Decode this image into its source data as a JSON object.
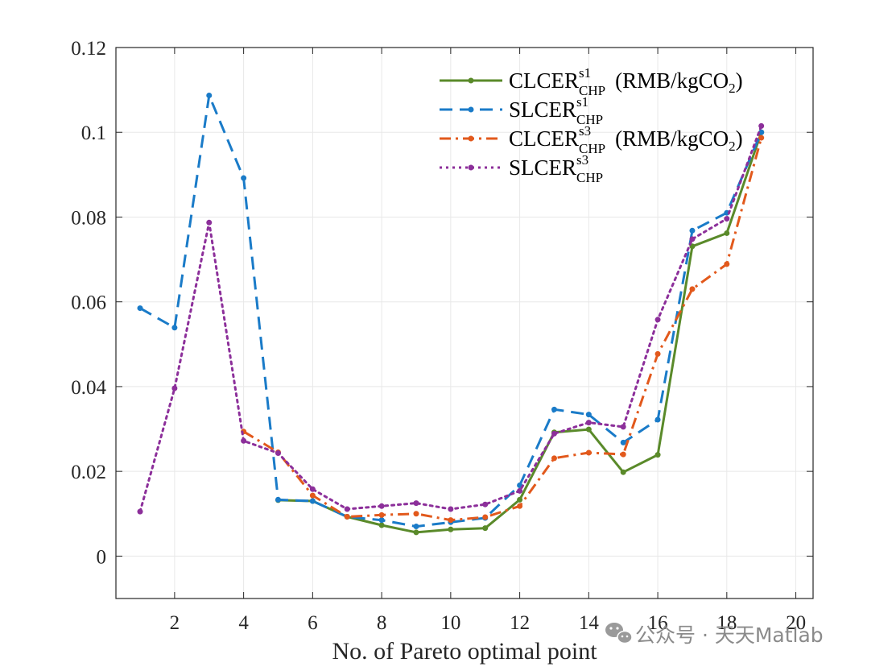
{
  "chart_data": {
    "type": "line",
    "title": "",
    "xlabel": "No. of Pareto optimal point",
    "ylabel": "",
    "xlim": [
      0.3,
      20.5
    ],
    "ylim": [
      -0.01,
      0.12
    ],
    "xticks": [
      2,
      4,
      6,
      8,
      10,
      12,
      14,
      16,
      18,
      20
    ],
    "xtick_labels": [
      "2",
      "4",
      "6",
      "8",
      "10",
      "12",
      "14",
      "16",
      "18",
      "20"
    ],
    "yticks": [
      0,
      0.02,
      0.04,
      0.06,
      0.08,
      0.1,
      0.12
    ],
    "ytick_labels": [
      "0",
      "0.02",
      "0.04",
      "0.06",
      "0.08",
      "0.1",
      "0.12"
    ],
    "grid": true,
    "legend_position": "top-right",
    "series": [
      {
        "name": "CLCER s1 CHP (RMB/kgCO2)",
        "label_main": "CLCER",
        "label_sup": "s1",
        "label_sub": "CHP",
        "label_unit": "(RMB/kgCO",
        "label_unit_sub": "2",
        "label_unit_end": ")",
        "color": "#5a8a2a",
        "dash": "solid",
        "x": [
          5,
          6,
          7,
          8,
          9,
          10,
          11,
          12,
          13,
          14,
          15,
          16,
          17,
          18,
          19
        ],
        "values": [
          0.0132,
          0.013,
          0.0093,
          0.0073,
          0.0056,
          0.0063,
          0.0066,
          0.0133,
          0.0292,
          0.0299,
          0.0198,
          0.0239,
          0.0731,
          0.0762,
          0.1
        ]
      },
      {
        "name": "SLCER s1 CHP",
        "label_main": "SLCER",
        "label_sup": "s1",
        "label_sub": "CHP",
        "label_unit": "",
        "label_unit_sub": "",
        "label_unit_end": "",
        "color": "#1a7bc8",
        "dash": "dashed",
        "x": [
          1,
          2,
          3,
          4,
          5,
          6,
          7,
          8,
          9,
          10,
          11,
          12,
          13,
          14,
          15,
          16,
          17,
          18,
          19
        ],
        "values": [
          0.0585,
          0.0539,
          0.1087,
          0.0892,
          0.0133,
          0.013,
          0.0093,
          0.0085,
          0.007,
          0.008,
          0.009,
          0.0167,
          0.0346,
          0.0334,
          0.0268,
          0.0322,
          0.0768,
          0.081,
          0.1
        ]
      },
      {
        "name": "CLCER s3 CHP (RMB/kgCO2)",
        "label_main": "CLCER",
        "label_sup": "s3",
        "label_sub": "CHP",
        "label_unit": "(RMB/kgCO",
        "label_unit_sub": "2",
        "label_unit_end": ")",
        "color": "#e2591c",
        "dash": "dashdot",
        "x": [
          4,
          5,
          6,
          7,
          8,
          9,
          10,
          11,
          12,
          13,
          14,
          15,
          16,
          17,
          18,
          19
        ],
        "values": [
          0.0294,
          0.0245,
          0.0143,
          0.0093,
          0.0097,
          0.01,
          0.0085,
          0.0092,
          0.0118,
          0.0231,
          0.0244,
          0.024,
          0.0477,
          0.063,
          0.0689,
          0.0987
        ]
      },
      {
        "name": "SLCER s3 CHP",
        "label_main": "SLCER",
        "label_sup": "s3",
        "label_sub": "CHP",
        "label_unit": "",
        "label_unit_sub": "",
        "label_unit_end": "",
        "color": "#8c2f9a",
        "dash": "dotted",
        "x": [
          1,
          2,
          3,
          4,
          5,
          6,
          7,
          8,
          9,
          10,
          11,
          12,
          13,
          14,
          15,
          16,
          17,
          18,
          19
        ],
        "values": [
          0.0105,
          0.0396,
          0.0787,
          0.0272,
          0.0243,
          0.0158,
          0.0111,
          0.0118,
          0.0125,
          0.0111,
          0.0122,
          0.0154,
          0.0289,
          0.0315,
          0.0305,
          0.0558,
          0.0748,
          0.0796,
          0.1015
        ]
      }
    ]
  },
  "watermark": {
    "text": "公众号 · 天天Matlab",
    "icon": "wechat-icon"
  }
}
